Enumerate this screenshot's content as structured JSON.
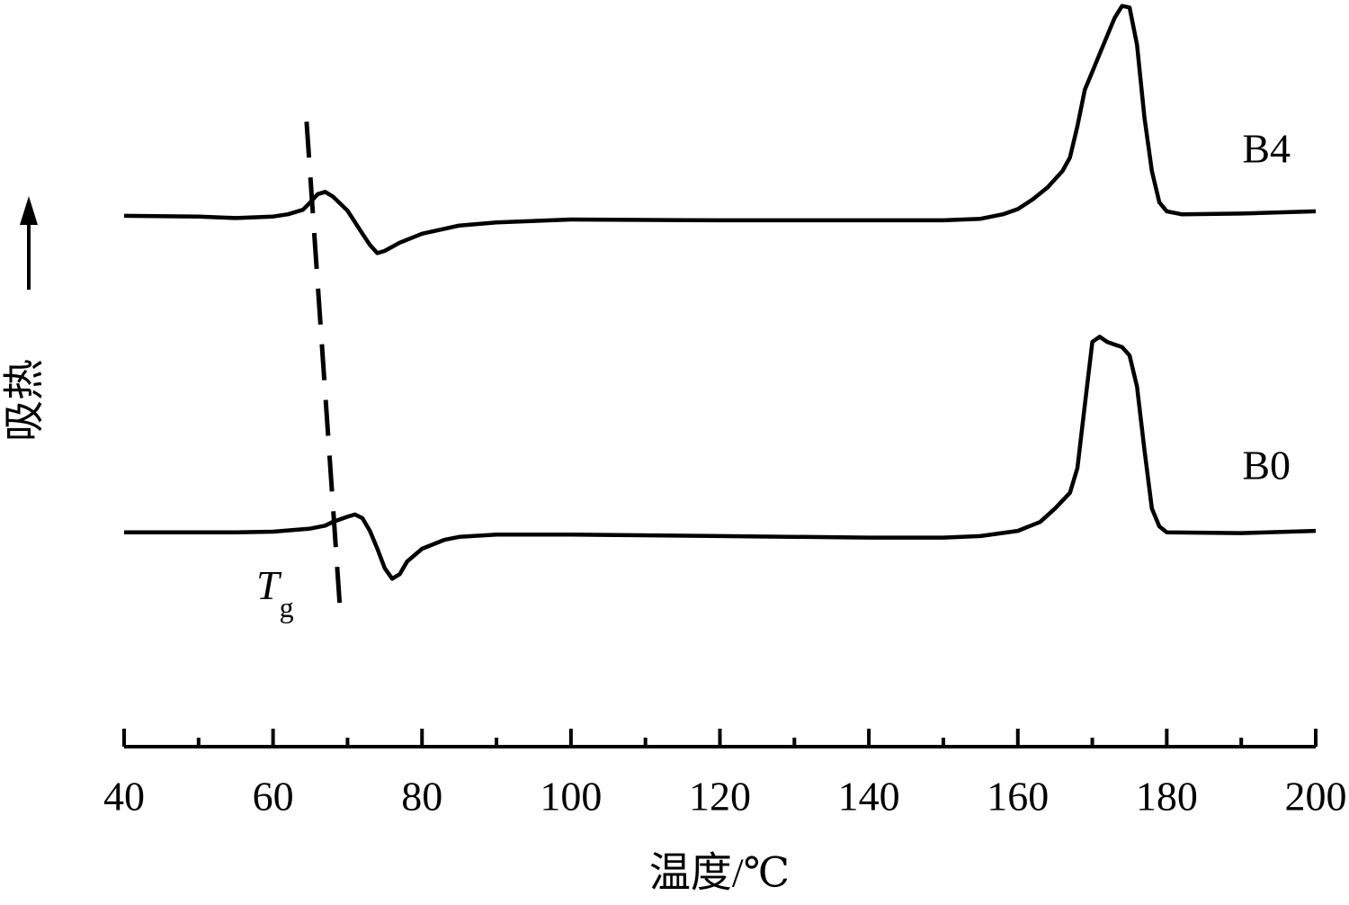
{
  "chart_data": {
    "type": "line",
    "x_label": "温度/℃",
    "y_label": "吸热",
    "xlim": [
      40,
      200
    ],
    "xticks": [
      40,
      60,
      80,
      100,
      120,
      140,
      160,
      180,
      200
    ],
    "xminorticks": [
      50,
      70,
      90,
      110,
      130,
      150,
      170,
      190
    ],
    "ylim": [
      0,
      100
    ],
    "series": [
      {
        "name": "B4",
        "color": "#000000",
        "x": [
          40,
          50,
          55,
          60,
          62,
          64,
          65,
          66,
          67,
          68,
          70,
          72,
          73,
          74,
          75,
          77,
          80,
          85,
          90,
          100,
          120,
          140,
          150,
          155,
          158,
          160,
          162,
          164,
          166,
          167,
          168,
          169,
          170,
          171,
          172,
          173,
          174,
          175,
          176,
          177,
          178,
          179,
          180,
          182,
          190,
          200
        ],
        "values": [
          71.1,
          71.0,
          70.8,
          71.0,
          71.3,
          71.9,
          72.9,
          74.0,
          74.3,
          73.7,
          71.8,
          68.7,
          67.2,
          66.1,
          66.4,
          67.5,
          68.7,
          69.8,
          70.2,
          70.6,
          70.5,
          70.5,
          70.5,
          70.7,
          71.3,
          72.0,
          73.3,
          74.9,
          77.1,
          78.9,
          83.1,
          88.0,
          90.4,
          92.8,
          95.2,
          97.6,
          99.2,
          99.0,
          94.0,
          84.3,
          77.1,
          72.9,
          71.7,
          71.3,
          71.4,
          71.7
        ]
      },
      {
        "name": "B0",
        "color": "#000000",
        "x": [
          40,
          55,
          60,
          65,
          67,
          68,
          70,
          71,
          72,
          73,
          74,
          75,
          76,
          77,
          78,
          80,
          83,
          85,
          90,
          100,
          120,
          140,
          150,
          155,
          160,
          163,
          165,
          167,
          168,
          169,
          170,
          171,
          172,
          174,
          175,
          176,
          177,
          178,
          179,
          180,
          190,
          200
        ],
        "values": [
          28.7,
          28.7,
          28.8,
          29.2,
          29.6,
          30.1,
          30.8,
          31.1,
          30.6,
          28.9,
          26.5,
          23.9,
          22.5,
          23.1,
          24.8,
          26.5,
          27.7,
          28.1,
          28.4,
          28.4,
          28.2,
          28.0,
          28.0,
          28.2,
          28.9,
          30.1,
          31.9,
          34.0,
          37.3,
          45.8,
          54.2,
          54.9,
          54.2,
          53.5,
          52.4,
          48.2,
          39.8,
          31.9,
          29.5,
          28.7,
          28.6,
          28.9
        ]
      }
    ],
    "tg_line": {
      "x": [
        64.5,
        69.1
      ],
      "values": [
        83.7,
        16.9
      ]
    },
    "tg_label": {
      "main": "T",
      "sub": "g"
    }
  }
}
